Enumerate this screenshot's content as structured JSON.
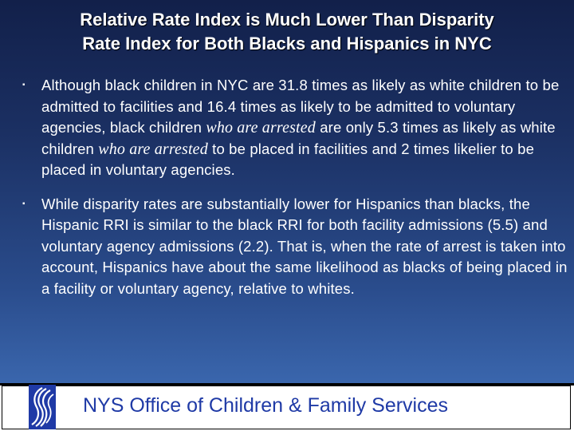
{
  "slide": {
    "title_lines": [
      "Relative Rate Index is Much Lower Than Disparity",
      "Rate Index for Both Blacks and Hispanics in NYC"
    ],
    "bullet_marker": "▪",
    "bullets": [
      {
        "parts": [
          "Although black children in NYC are 31.8 times as likely as white children to be admitted to facilities and 16.4 times as likely to be admitted to voluntary agencies, black children ",
          "who are arrested",
          " are only 5.3 times as likely as white children ",
          "who are arrested",
          " to be placed in facilities and 2 times likelier to be placed in voluntary agencies."
        ]
      },
      {
        "text": "While disparity rates are substantially lower for Hispanics than blacks, the Hispanic RRI is similar to the black RRI for both facility admissions (5.5) and voluntary agency admissions (2.2). That is, when the rate of arrest is taken into account, Hispanics have about the same likelihood as blacks of being placed in a facility or voluntary agency, relative to whites."
      }
    ]
  },
  "footer": {
    "org_name": "NYS Office of Children & Family Services",
    "logo_icon": "ocfs-logo-icon"
  },
  "colors": {
    "background_top": "#12204a",
    "background_bottom": "#3a66ad",
    "text": "#ffffff",
    "footer_text": "#1f3aa6",
    "logo": "#1f3aa6"
  }
}
